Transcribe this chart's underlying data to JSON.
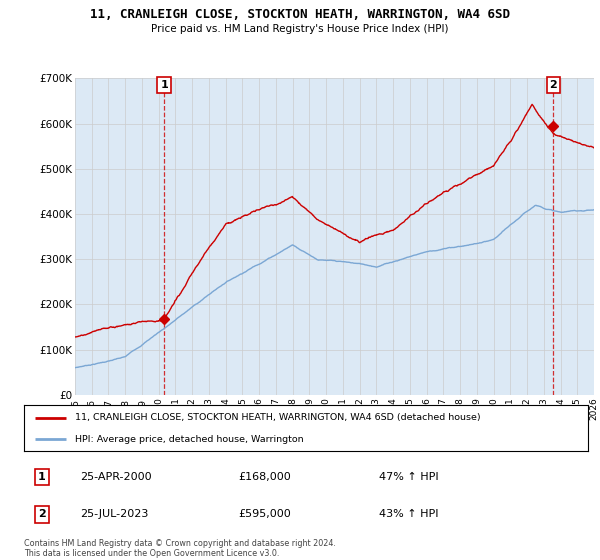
{
  "title": "11, CRANLEIGH CLOSE, STOCKTON HEATH, WARRINGTON, WA4 6SD",
  "subtitle": "Price paid vs. HM Land Registry's House Price Index (HPI)",
  "xlim_start": 1995,
  "xlim_end": 2026,
  "ylim_min": 0,
  "ylim_max": 700000,
  "yticks": [
    0,
    100000,
    200000,
    300000,
    400000,
    500000,
    600000,
    700000
  ],
  "ytick_labels": [
    "£0",
    "£100K",
    "£200K",
    "£300K",
    "£400K",
    "£500K",
    "£600K",
    "£700K"
  ],
  "xticks": [
    1995,
    1996,
    1997,
    1998,
    1999,
    2000,
    2001,
    2002,
    2003,
    2004,
    2005,
    2006,
    2007,
    2008,
    2009,
    2010,
    2011,
    2012,
    2013,
    2014,
    2015,
    2016,
    2017,
    2018,
    2019,
    2020,
    2021,
    2022,
    2023,
    2024,
    2025,
    2026
  ],
  "sale1_x": 2000.32,
  "sale1_y": 168000,
  "sale2_x": 2023.57,
  "sale2_y": 595000,
  "red_line_color": "#cc0000",
  "blue_line_color": "#7ba7d4",
  "grid_color": "#cccccc",
  "chart_bg": "#dce9f5",
  "legend1": "11, CRANLEIGH CLOSE, STOCKTON HEATH, WARRINGTON, WA4 6SD (detached house)",
  "legend2": "HPI: Average price, detached house, Warrington",
  "annotation1_label": "1",
  "annotation1_date": "25-APR-2000",
  "annotation1_price": "£168,000",
  "annotation1_hpi": "47% ↑ HPI",
  "annotation2_label": "2",
  "annotation2_date": "25-JUL-2023",
  "annotation2_price": "£595,000",
  "annotation2_hpi": "43% ↑ HPI",
  "footer1": "Contains HM Land Registry data © Crown copyright and database right 2024.",
  "footer2": "This data is licensed under the Open Government Licence v3.0."
}
